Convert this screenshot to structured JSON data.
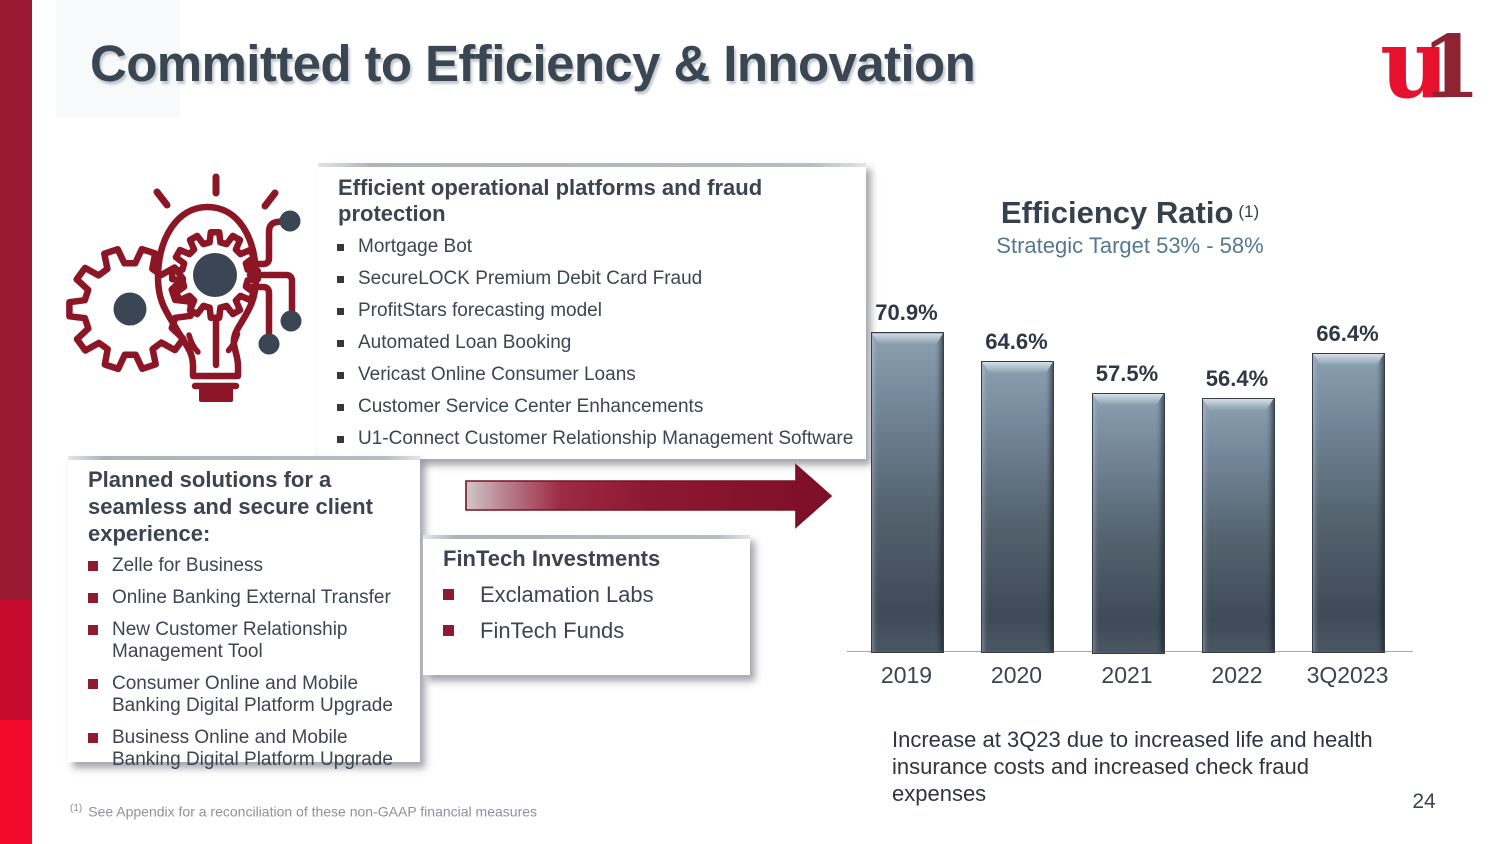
{
  "slide": {
    "title": "Committed to Efficiency & Innovation",
    "page_number": "24",
    "footnote_marker": "(1)",
    "footnote_text": "See Appendix for a reconciliation of these non-GAAP financial measures",
    "logo_u": "u",
    "logo_one": "1"
  },
  "boxes": {
    "operational": {
      "heading": "Efficient operational platforms and fraud protection",
      "items": [
        "Mortgage Bot",
        "SecureLOCK Premium Debit Card Fraud",
        "ProfitStars forecasting model",
        "Automated Loan Booking",
        "Vericast Online Consumer Loans",
        "Customer Service Center Enhancements",
        "U1-Connect Customer Relationship Management Software"
      ]
    },
    "planned": {
      "heading": "Planned solutions for a seamless and secure client experience:",
      "items": [
        "Zelle for Business",
        "Online Banking External Transfer",
        "New Customer Relationship Management Tool",
        "Consumer Online and Mobile Banking Digital Platform Upgrade",
        "Business Online and Mobile Banking Digital Platform Upgrade"
      ]
    },
    "fintech": {
      "heading": "FinTech Investments",
      "items": [
        "Exclamation Labs",
        "FinTech Funds"
      ]
    }
  },
  "insight": "Increase at 3Q23 due to increased life and health insurance costs and increased check fraud expenses",
  "chart_data": {
    "type": "bar",
    "title": "Efficiency Ratio",
    "title_superscript": "(1)",
    "subtitle": "Strategic Target 53% - 58%",
    "categories": [
      "2019",
      "2020",
      "2021",
      "2022",
      "3Q2023"
    ],
    "values": [
      70.9,
      64.6,
      57.5,
      56.4,
      66.4
    ],
    "value_labels": [
      "70.9%",
      "64.6%",
      "57.5%",
      "56.4%",
      "66.4%"
    ],
    "ylim": [
      0,
      75
    ],
    "grid": false,
    "legend": false,
    "bar_color_top": "#8ba0b1",
    "bar_color_bottom": "#3e4a57"
  },
  "colors": {
    "accent_dark_red": "#9a1a33",
    "accent_red": "#c70b2e",
    "accent_bright_red": "#f3092c",
    "heading_slate": "#3b4653",
    "subtitle_steel_blue": "#54788f",
    "logo_red": "#e8112d",
    "logo_maroon": "#8e2433"
  }
}
